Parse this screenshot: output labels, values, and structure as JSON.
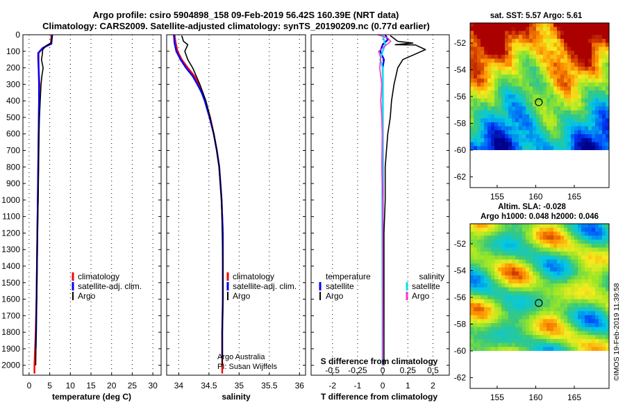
{
  "title_line1": "Argo profile: csiro 5904898_158 09-Feb-2019 56.42S 160.39E (NRT data)",
  "title_line2": "Climatology: CARS2009. Satellite-adjusted climatology: synTS_20190209.nc (0.77d earlier)",
  "colors": {
    "climatology": "#ff0000",
    "satellite": "#0000ff",
    "argo": "#000000",
    "salinity_sat": "#00e5e5",
    "salinity_argo": "#ff33cc"
  },
  "chart_data": [
    {
      "type": "line",
      "id": "temperature",
      "xlabel": "temperature (deg C)",
      "ylabel": "",
      "xlim": [
        -1.5,
        32
      ],
      "ylim": [
        2060,
        0
      ],
      "xticks": [
        0,
        5,
        10,
        15,
        20,
        25,
        30
      ],
      "xtick_labels": [
        "0",
        "5",
        "10",
        "15",
        "20",
        "25",
        "30"
      ],
      "yticks": [
        0,
        100,
        200,
        300,
        400,
        500,
        600,
        700,
        800,
        900,
        1000,
        1100,
        1200,
        1300,
        1400,
        1500,
        1600,
        1700,
        1800,
        1900,
        2000
      ],
      "legend": [
        "climatology",
        "satellite-adj. clim.",
        "Argo"
      ],
      "series": [
        {
          "name": "climatology",
          "color": "#ff0000",
          "points": [
            [
              5.4,
              0
            ],
            [
              5.3,
              50
            ],
            [
              3.4,
              80
            ],
            [
              2.3,
              110
            ],
            [
              2.3,
              150
            ],
            [
              2.3,
              200
            ],
            [
              2.5,
              300
            ],
            [
              2.4,
              400
            ],
            [
              2.3,
              600
            ],
            [
              2.2,
              800
            ],
            [
              2.1,
              1000
            ],
            [
              2.0,
              1200
            ],
            [
              1.9,
              1400
            ],
            [
              1.8,
              1600
            ],
            [
              1.6,
              1800
            ],
            [
              1.3,
              2000
            ],
            [
              1.3,
              2050
            ]
          ]
        },
        {
          "name": "satellite-adj. clim.",
          "color": "#0000ff",
          "points": [
            [
              5.6,
              0
            ],
            [
              5.4,
              55
            ],
            [
              3.3,
              80
            ],
            [
              2.2,
              110
            ],
            [
              2.2,
              150
            ],
            [
              2.3,
              200
            ],
            [
              2.4,
              300
            ],
            [
              2.4,
              400
            ],
            [
              2.3,
              600
            ],
            [
              2.2,
              800
            ],
            [
              2.1,
              1000
            ],
            [
              2.0,
              1200
            ],
            [
              1.9,
              1400
            ],
            [
              1.8,
              1600
            ],
            [
              1.7,
              1800
            ],
            [
              1.6,
              1900
            ]
          ]
        },
        {
          "name": "Argo",
          "color": "#000000",
          "points": [
            [
              5.6,
              5
            ],
            [
              5.3,
              50
            ],
            [
              4.2,
              65
            ],
            [
              3.3,
              90
            ],
            [
              3.2,
              120
            ],
            [
              3.0,
              150
            ],
            [
              3.4,
              200
            ],
            [
              3.1,
              250
            ],
            [
              2.9,
              300
            ],
            [
              2.7,
              400
            ],
            [
              2.5,
              500
            ],
            [
              2.4,
              600
            ],
            [
              2.3,
              800
            ],
            [
              2.2,
              1000
            ],
            [
              2.0,
              1200
            ],
            [
              1.9,
              1400
            ],
            [
              1.8,
              1600
            ],
            [
              1.7,
              1800
            ],
            [
              1.6,
              2000
            ]
          ]
        }
      ]
    },
    {
      "type": "line",
      "id": "salinity",
      "xlabel": "salinity",
      "ylabel": "",
      "xlim": [
        33.8,
        36.1
      ],
      "ylim": [
        2060,
        0
      ],
      "xticks": [
        34,
        34.5,
        35,
        35.5,
        36
      ],
      "xtick_labels": [
        "34",
        "34.5",
        "35",
        "35.5",
        "36"
      ],
      "legend": [
        "climatology",
        "satellite-adj. clim.",
        "Argo"
      ],
      "series": [
        {
          "name": "climatology",
          "color": "#ff0000",
          "points": [
            [
              33.93,
              0
            ],
            [
              33.95,
              50
            ],
            [
              33.98,
              100
            ],
            [
              34.05,
              150
            ],
            [
              34.15,
              200
            ],
            [
              34.26,
              250
            ],
            [
              34.33,
              300
            ],
            [
              34.39,
              350
            ],
            [
              34.44,
              400
            ],
            [
              34.52,
              500
            ],
            [
              34.58,
              600
            ],
            [
              34.63,
              700
            ],
            [
              34.67,
              800
            ],
            [
              34.69,
              900
            ],
            [
              34.71,
              1000
            ],
            [
              34.72,
              1100
            ],
            [
              34.73,
              1200
            ],
            [
              34.73,
              1300
            ],
            [
              34.73,
              1400
            ],
            [
              34.73,
              1600
            ],
            [
              34.72,
              1800
            ],
            [
              34.72,
              2000
            ],
            [
              34.72,
              2050
            ]
          ]
        },
        {
          "name": "satellite-adj. clim.",
          "color": "#0000ff",
          "points": [
            [
              33.92,
              0
            ],
            [
              33.93,
              50
            ],
            [
              33.96,
              100
            ],
            [
              34.03,
              150
            ],
            [
              34.12,
              200
            ],
            [
              34.23,
              250
            ],
            [
              34.31,
              300
            ],
            [
              34.38,
              350
            ],
            [
              34.43,
              400
            ],
            [
              34.51,
              500
            ],
            [
              34.58,
              600
            ],
            [
              34.63,
              700
            ],
            [
              34.67,
              800
            ],
            [
              34.69,
              900
            ],
            [
              34.71,
              1000
            ],
            [
              34.72,
              1100
            ],
            [
              34.73,
              1200
            ],
            [
              34.73,
              1400
            ],
            [
              34.73,
              1600
            ],
            [
              34.72,
              1800
            ],
            [
              34.72,
              1950
            ]
          ]
        },
        {
          "name": "Argo",
          "color": "#000000",
          "points": [
            [
              34.05,
              5
            ],
            [
              34.08,
              40
            ],
            [
              34.15,
              60
            ],
            [
              34.1,
              100
            ],
            [
              34.15,
              150
            ],
            [
              34.23,
              200
            ],
            [
              34.29,
              250
            ],
            [
              34.35,
              300
            ],
            [
              34.4,
              350
            ],
            [
              34.45,
              400
            ],
            [
              34.52,
              500
            ],
            [
              34.58,
              600
            ],
            [
              34.63,
              700
            ],
            [
              34.67,
              800
            ],
            [
              34.69,
              900
            ],
            [
              34.71,
              1000
            ],
            [
              34.72,
              1200
            ],
            [
              34.73,
              1400
            ],
            [
              34.73,
              1600
            ],
            [
              34.72,
              1800
            ],
            [
              34.72,
              2000
            ]
          ]
        }
      ]
    },
    {
      "type": "line",
      "id": "difference",
      "xlabel": "T difference from climatology",
      "ylabel": "",
      "xlim": [
        -2.85,
        2.65
      ],
      "ylim": [
        2060,
        0
      ],
      "xticks": [
        -2,
        -1,
        0,
        1,
        2
      ],
      "xtick_labels": [
        "-2",
        "-1",
        "0",
        "1",
        "2"
      ],
      "secondary_xlabel": "S difference from climatology",
      "secondary_xticks": [
        -0.5,
        -0.25,
        0,
        0.25,
        0.5
      ],
      "secondary_xtick_labels": [
        "-0.5",
        "-0.25",
        "0",
        "0.25",
        "0.5"
      ],
      "secondary_scale": 4,
      "legend_temperature": {
        "heading": "temperature",
        "items": [
          "satellite",
          "Argo"
        ]
      },
      "legend_salinity": {
        "heading": "salinity",
        "items": [
          "satellite",
          "Argo"
        ]
      },
      "series": [
        {
          "name": "temperature satellite",
          "color": "#0000ff",
          "points": [
            [
              0.1,
              0
            ],
            [
              0.2,
              30
            ],
            [
              0.0,
              60
            ],
            [
              -0.1,
              100
            ],
            [
              0.05,
              150
            ],
            [
              0.0,
              200
            ],
            [
              0.0,
              400
            ],
            [
              0.0,
              1000
            ],
            [
              0.0,
              2000
            ]
          ]
        },
        {
          "name": "temperature Argo",
          "color": "#000000",
          "points": [
            [
              0.3,
              5
            ],
            [
              0.6,
              40
            ],
            [
              1.2,
              50
            ],
            [
              0.5,
              60
            ],
            [
              1.3,
              62
            ],
            [
              1.7,
              90
            ],
            [
              1.4,
              110
            ],
            [
              0.8,
              150
            ],
            [
              0.6,
              200
            ],
            [
              0.45,
              300
            ],
            [
              0.35,
              400
            ],
            [
              0.3,
              500
            ],
            [
              0.2,
              600
            ],
            [
              0.15,
              700
            ],
            [
              0.1,
              800
            ],
            [
              0.1,
              1000
            ],
            [
              0.05,
              1200
            ],
            [
              0.05,
              1400
            ],
            [
              0.05,
              1600
            ],
            [
              0.05,
              1800
            ],
            [
              0.05,
              2000
            ]
          ]
        },
        {
          "name": "salinity satellite",
          "color": "#00e5e5",
          "points": [
            [
              0.0,
              0
            ],
            [
              0.025,
              60
            ],
            [
              0.0,
              100
            ],
            [
              -0.025,
              150
            ],
            [
              0.0,
              200
            ],
            [
              0.0,
              400
            ],
            [
              -0.005,
              1000
            ],
            [
              0.0,
              2000
            ]
          ]
        },
        {
          "name": "salinity Argo",
          "color": "#ff33cc",
          "points": [
            [
              -0.05,
              0
            ],
            [
              0.05,
              20
            ],
            [
              0.08,
              40
            ],
            [
              0.04,
              60
            ],
            [
              0.0,
              80
            ],
            [
              -0.04,
              100
            ],
            [
              -0.02,
              140
            ],
            [
              -0.03,
              200
            ],
            [
              -0.01,
              300
            ],
            [
              -0.02,
              400
            ],
            [
              -0.01,
              500
            ],
            [
              -0.005,
              600
            ],
            [
              -0.01,
              800
            ],
            [
              0.0,
              1000
            ],
            [
              0.0,
              1400
            ],
            [
              0.0,
              2000
            ]
          ]
        }
      ]
    },
    {
      "type": "heatmap",
      "id": "sst_map",
      "title": "sat. SST: 5.57 Argo: 5.61",
      "xlim": [
        151.5,
        169.5
      ],
      "ylim": [
        -62.8,
        -50.5
      ],
      "xticks": [
        155,
        160,
        165
      ],
      "xtick_labels": [
        "155",
        "160",
        "165"
      ],
      "yticks": [
        -52,
        -54,
        -56,
        -58,
        -60,
        -62
      ],
      "ytick_labels": [
        "-52",
        "-54",
        "-56",
        "-58",
        "-60",
        "-62"
      ],
      "data_extent_lat": [
        -60,
        -50.5
      ],
      "float_position": {
        "lon": 160.39,
        "lat": -56.42
      }
    },
    {
      "type": "heatmap",
      "id": "sla_map",
      "title_line1": "Altim. SLA: -0.028",
      "title_line2": "Argo h1000: 0.048 h2000: 0.046",
      "xlim": [
        151.5,
        169.5
      ],
      "ylim": [
        -62.8,
        -50.5
      ],
      "xticks": [
        155,
        160,
        165
      ],
      "xtick_labels": [
        "155",
        "160",
        "165"
      ],
      "yticks": [
        -52,
        -54,
        -56,
        -58,
        -60,
        -62
      ],
      "ytick_labels": [
        "-52",
        "-54",
        "-56",
        "-58",
        "-60",
        "-62"
      ],
      "data_extent_lat": [
        -60,
        -50.5
      ],
      "float_position": {
        "lon": 160.39,
        "lat": -56.42
      }
    }
  ],
  "credit_line1": "Argo Australia",
  "credit_line2": "PI: Susan Wijffels",
  "imos_stamp": "©IMOS 19-Feb-2019 11:39:58"
}
